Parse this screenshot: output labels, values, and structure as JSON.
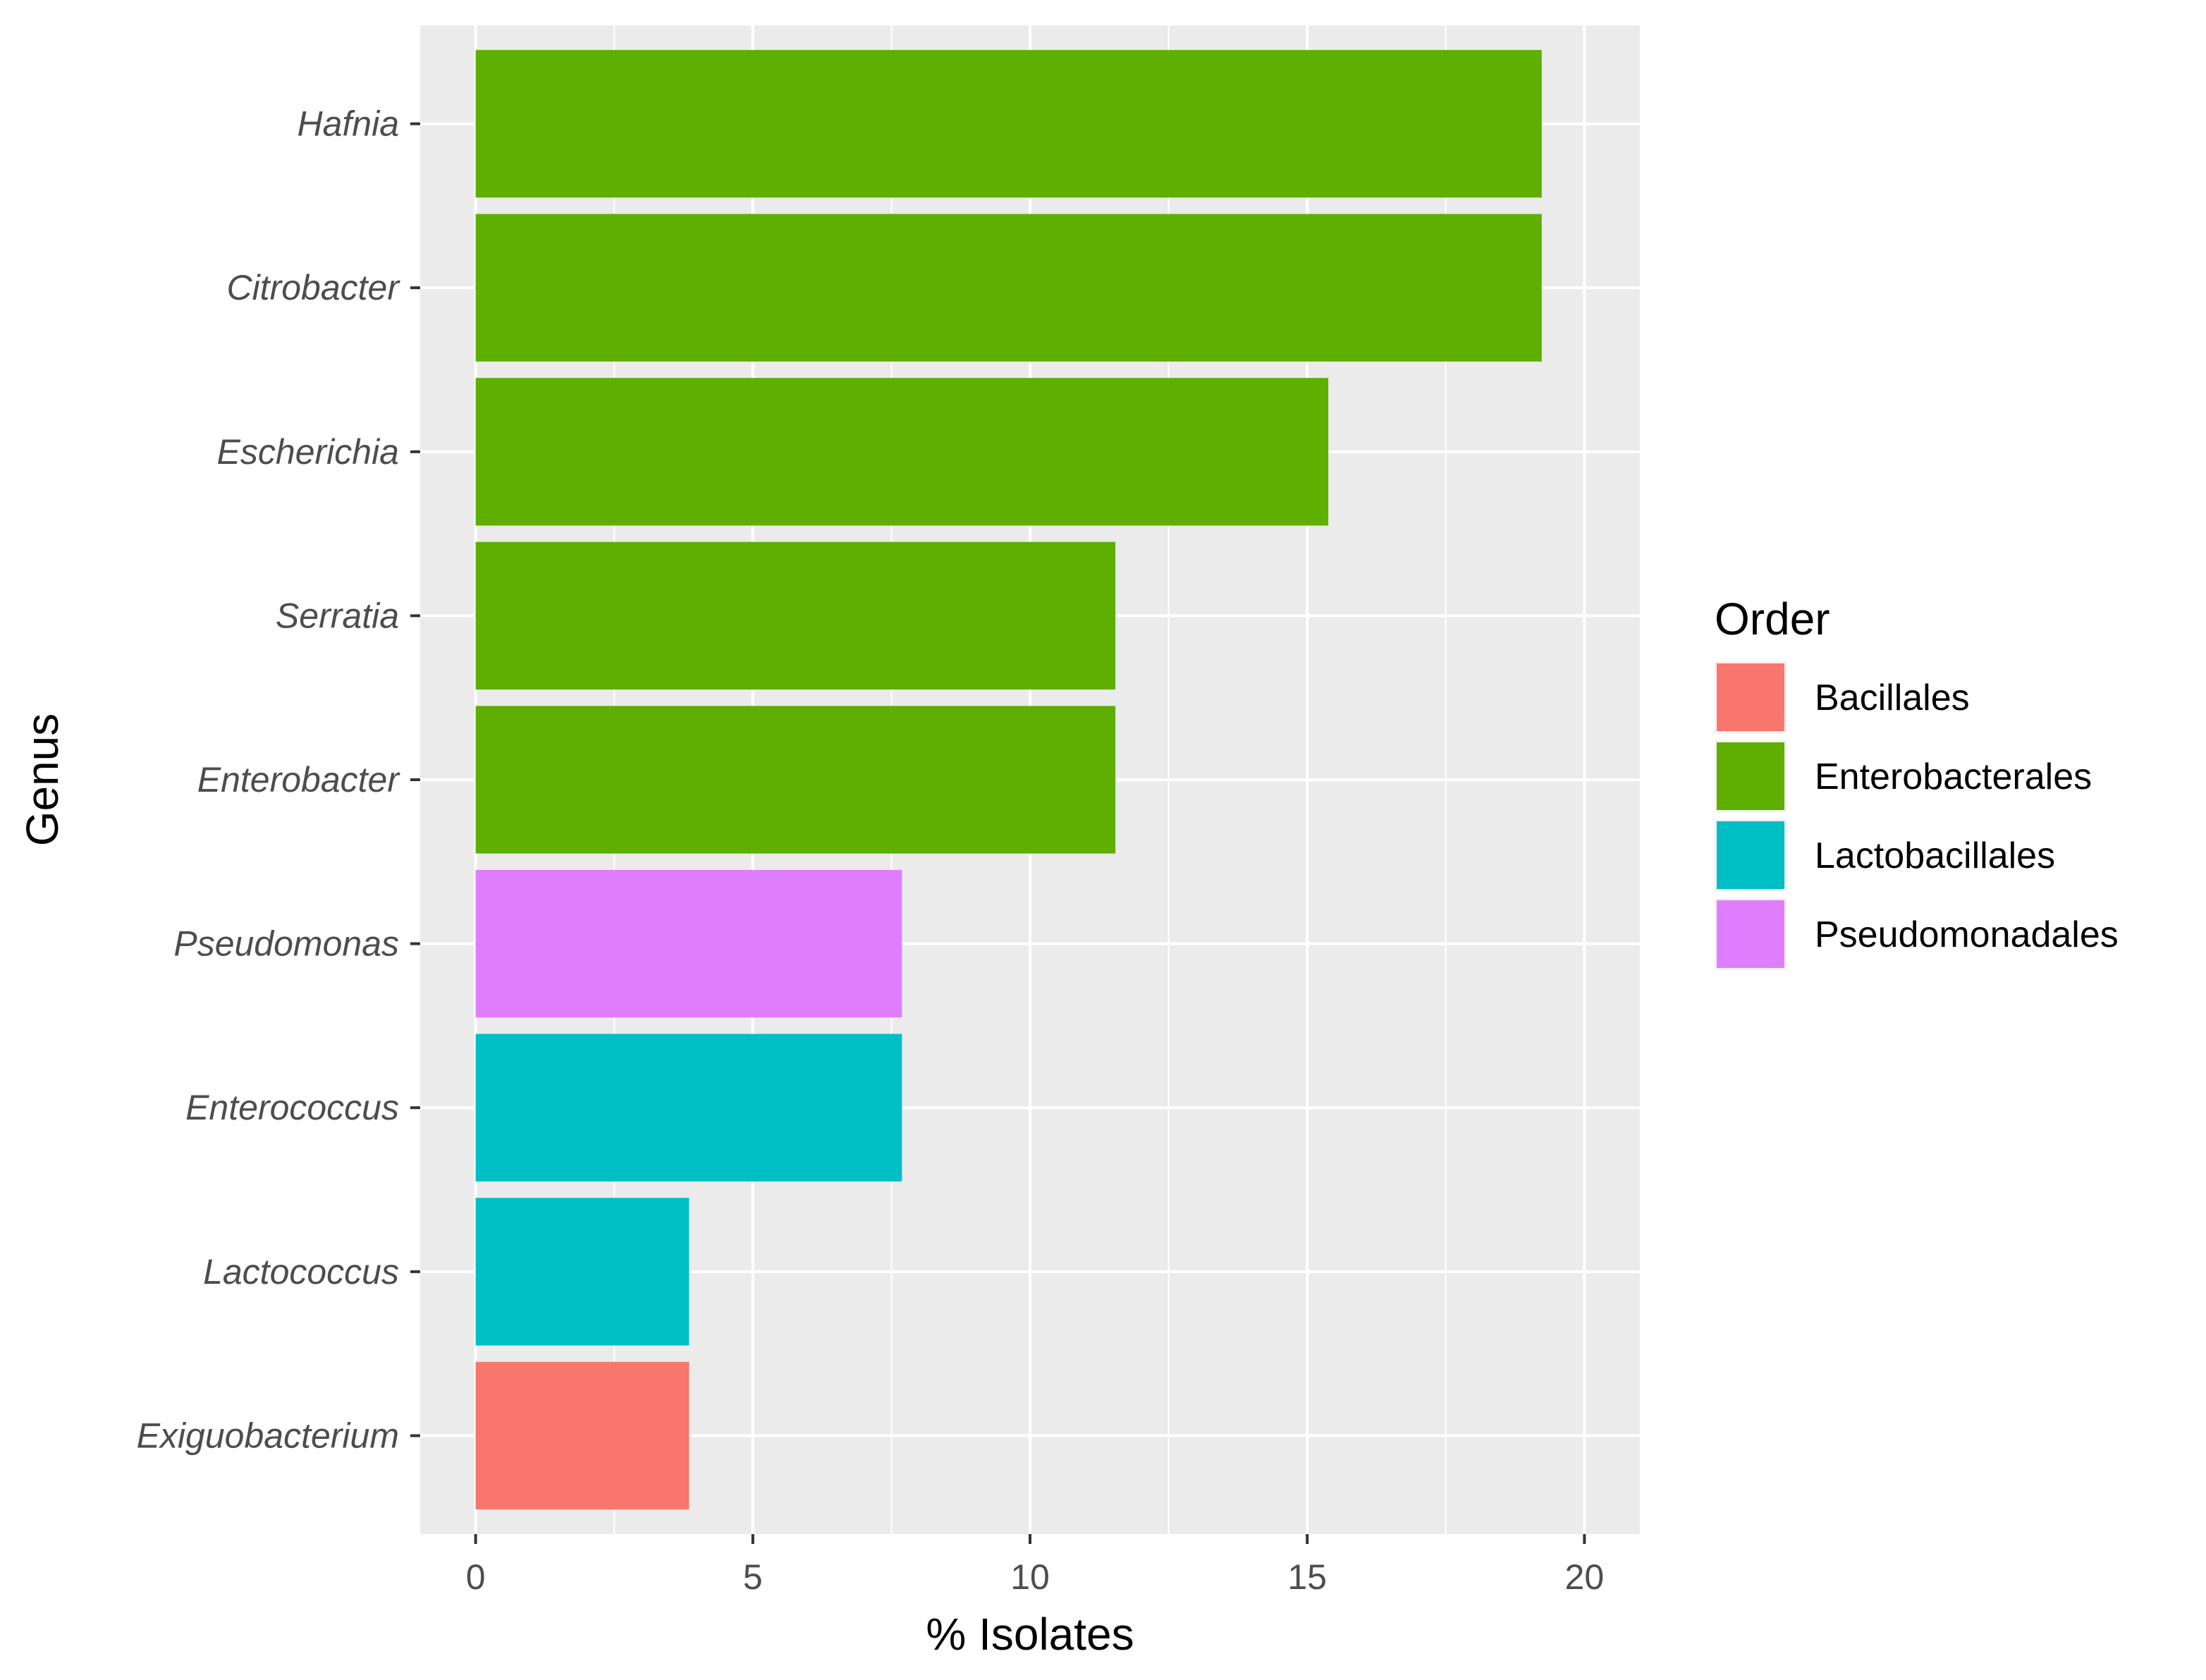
{
  "chart_data": {
    "type": "bar",
    "orientation": "horizontal",
    "title": "",
    "xlabel": "% Isolates",
    "ylabel": "Genus",
    "xlim": [
      -1,
      21
    ],
    "x_ticks": [
      0,
      5,
      10,
      15,
      20
    ],
    "x_tick_labels": [
      "0",
      "5",
      "10",
      "15",
      "20"
    ],
    "grid": true,
    "panel_background": "#EBEBEB",
    "categories": [
      "Hafnia",
      "Citrobacter",
      "Escherichia",
      "Serratia",
      "Enterobacter",
      "Pseudomonas",
      "Enterococcus",
      "Lactococcus",
      "Exiguobacterium"
    ],
    "values": [
      19.23,
      19.23,
      15.38,
      11.54,
      11.54,
      7.69,
      7.69,
      3.85,
      3.85
    ],
    "fill_groups": [
      "Enterobacterales",
      "Enterobacterales",
      "Enterobacterales",
      "Enterobacterales",
      "Enterobacterales",
      "Pseudomonadales",
      "Lactobacillales",
      "Lactobacillales",
      "Bacillales"
    ],
    "legend": {
      "title": "Order",
      "placement": "right",
      "entries": [
        {
          "label": "Bacillales",
          "color": "#F8766D"
        },
        {
          "label": "Enterobacterales",
          "color": "#5FAF00"
        },
        {
          "label": "Lactobacillales",
          "color": "#00BFC4"
        },
        {
          "label": "Pseudomonadales",
          "color": "#DE7EFF"
        }
      ]
    }
  }
}
